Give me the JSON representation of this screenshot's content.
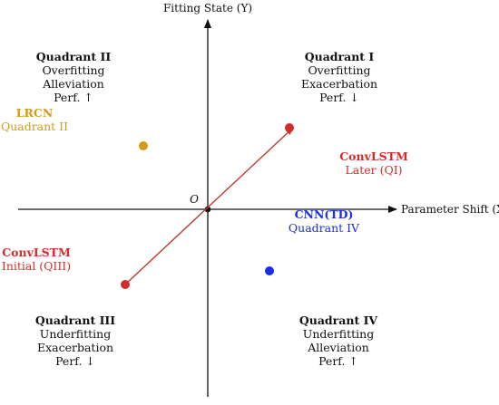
{
  "axes": {
    "y_label": "Fitting State (Y)",
    "x_label": "Parameter Shift (X)",
    "origin": "O"
  },
  "quadrants": [
    {
      "title": "Quadrant I",
      "lines": [
        "Overfitting",
        "Exacerbation",
        "Perf. ↓"
      ]
    },
    {
      "title": "Quadrant II",
      "lines": [
        "Overfitting",
        "Alleviation",
        "Perf. ↑"
      ]
    },
    {
      "title": "Quadrant III",
      "lines": [
        "Underfitting",
        "Exacerbation",
        "Perf. ↓"
      ]
    },
    {
      "title": "Quadrant IV",
      "lines": [
        "Underfitting",
        "Alleviation",
        "Perf. ↑"
      ]
    }
  ],
  "points": {
    "lrcn": {
      "name": "LRCN",
      "sub": "Quadrant II",
      "color": "#d49a1a"
    },
    "cnn_td": {
      "name": "CNN(TD)",
      "sub": "Quadrant IV",
      "color": "#1a2ee6"
    },
    "convlstm_later": {
      "name": "ConvLSTM",
      "sub": "Later (QI)",
      "color": "#d42a2a"
    },
    "convlstm_initial": {
      "name": "ConvLSTM",
      "sub": "Initial (QIII)",
      "color": "#d42a2a"
    }
  },
  "colors": {
    "axis": "#111111",
    "trajectory": "#c0392b",
    "origin_dot": "#111111"
  }
}
